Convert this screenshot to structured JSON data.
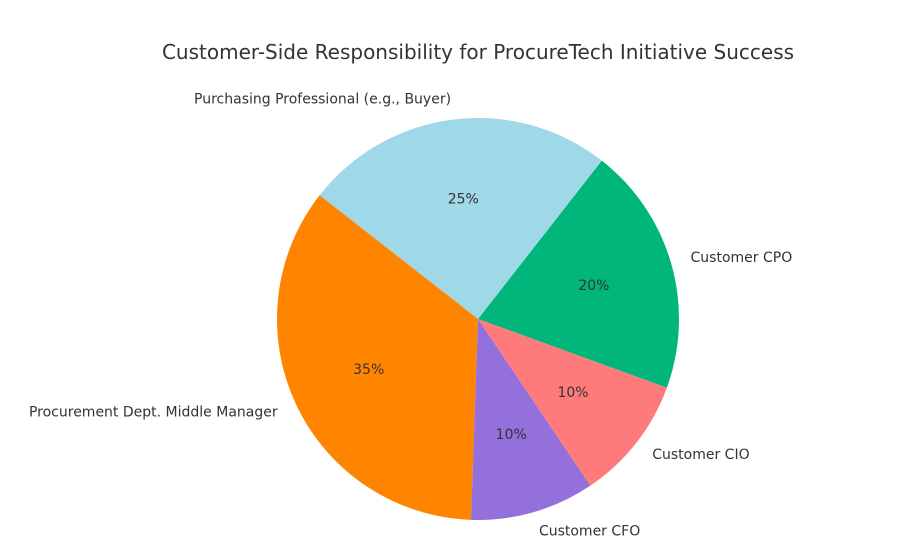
{
  "chart_data": {
    "type": "pie",
    "title": "Customer-Side Responsibility for ProcureTech Initiative Success",
    "categories": [
      "Customer CPO",
      "Purchasing Professional (e.g., Buyer)",
      "Procurement Dept. Middle Manager",
      "Customer CFO",
      "Customer CIO"
    ],
    "values": [
      20,
      25,
      35,
      10,
      10
    ],
    "value_labels": [
      "20%",
      "25%",
      "35%",
      "10%",
      "10%"
    ],
    "colors": [
      "#00b67a",
      "#9fd9e8",
      "#ff8500",
      "#9370db",
      "#ff7a7a"
    ],
    "legend": "none"
  }
}
